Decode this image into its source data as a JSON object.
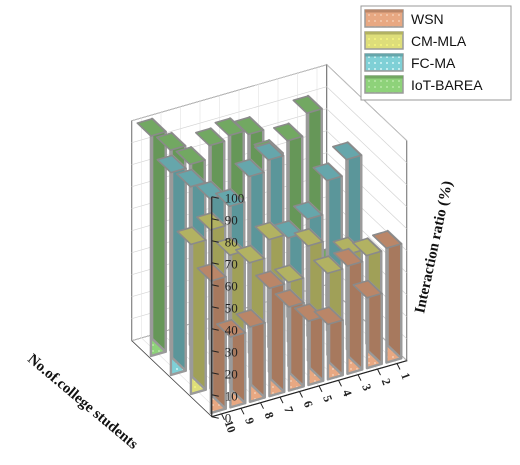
{
  "chart_data": {
    "type": "bar",
    "categories": [
      "1",
      "2",
      "3",
      "4",
      "5",
      "6",
      "7",
      "8",
      "9",
      "10"
    ],
    "xlabel": "No.of.college students",
    "ylabel": "Interaction ratio (%)",
    "ylim": [
      0,
      100
    ],
    "yticks": [
      "0",
      "10",
      "20",
      "30",
      "40",
      "50",
      "60",
      "70",
      "80",
      "90",
      "100"
    ],
    "legend_position": "top-right",
    "grid": true,
    "series": [
      {
        "name": "WSN",
        "color": "#e8a882",
        "values": [
          52,
          32,
          49,
          25,
          29,
          38,
          49,
          34,
          32,
          60
        ]
      },
      {
        "name": "CM-MLA",
        "color": "#dede7a",
        "values": [
          40,
          43,
          37,
          52,
          38,
          60,
          52,
          58,
          72,
          68
        ]
      },
      {
        "name": "FC-MA",
        "color": "#7fd0d6",
        "values": [
          75,
          68,
          53,
          47,
          85,
          80,
          69,
          75,
          83,
          92
        ]
      },
      {
        "name": "IoT-BAREA",
        "color": "#8ed27a",
        "values": [
          18,
          90,
          80,
          75,
          88,
          90,
          88,
          82,
          91,
          100
        ]
      }
    ]
  }
}
